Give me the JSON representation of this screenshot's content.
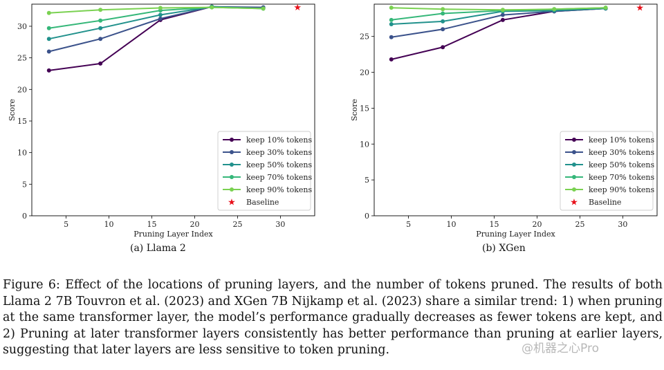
{
  "figure": {
    "caption": "Figure 6: Effect of the locations of pruning layers, and the number of tokens pruned. The results of both Llama 2 7B Touvron et al. (2023) and XGen 7B Nijkamp et al. (2023) share a similar trend: 1) when pruning at the same transformer layer, the model’s performance gradually decreases as fewer tokens are kept, and 2) Pruning at later transformer layers consistently has better performance than pruning at earlier layers, suggesting that later layers are less sensitive to token pruning.",
    "watermark": "@机器之心Pro"
  },
  "chart_data": [
    {
      "type": "line",
      "subcaption": "(a) Llama 2",
      "xlabel": "Pruning Layer Index",
      "ylabel": "Score",
      "xlim": [
        1,
        34
      ],
      "ylim": [
        0,
        33.5
      ],
      "xticks": [
        5,
        10,
        15,
        20,
        25,
        30
      ],
      "yticks": [
        0,
        5,
        10,
        15,
        20,
        25,
        30
      ],
      "legend_position": "lower right",
      "x": [
        3,
        9,
        16,
        22,
        28
      ],
      "series": [
        {
          "name": "keep 10% tokens",
          "color": "#440154",
          "values": [
            23.0,
            24.1,
            31.0,
            33.1,
            32.9
          ]
        },
        {
          "name": "keep 30% tokens",
          "color": "#3b528b",
          "values": [
            26.0,
            28.0,
            31.2,
            33.1,
            33.0
          ]
        },
        {
          "name": "keep 50% tokens",
          "color": "#21918c",
          "values": [
            28.0,
            29.7,
            31.8,
            33.1,
            32.8
          ]
        },
        {
          "name": "keep 70% tokens",
          "color": "#35b779",
          "values": [
            29.7,
            30.9,
            32.5,
            33.0,
            32.8
          ]
        },
        {
          "name": "keep 90% tokens",
          "color": "#7ad151",
          "values": [
            32.1,
            32.6,
            32.9,
            33.0,
            32.8
          ]
        }
      ],
      "baseline": {
        "name": "Baseline",
        "color": "#e8101a",
        "x": 32,
        "y": 33.0
      }
    },
    {
      "type": "line",
      "subcaption": "(b) XGen",
      "xlabel": "Pruning Layer Index",
      "ylabel": "Score",
      "xlim": [
        1,
        34
      ],
      "ylim": [
        0,
        29.5
      ],
      "xticks": [
        5,
        10,
        15,
        20,
        25,
        30
      ],
      "yticks": [
        0,
        5,
        10,
        15,
        20,
        25
      ],
      "legend_position": "lower right",
      "x": [
        3,
        9,
        16,
        22,
        28
      ],
      "series": [
        {
          "name": "keep 10% tokens",
          "color": "#440154",
          "values": [
            21.8,
            23.5,
            27.3,
            28.5,
            28.9
          ]
        },
        {
          "name": "keep 30% tokens",
          "color": "#3b528b",
          "values": [
            24.9,
            26.0,
            28.0,
            28.5,
            28.9
          ]
        },
        {
          "name": "keep 50% tokens",
          "color": "#21918c",
          "values": [
            26.7,
            27.1,
            28.5,
            28.6,
            28.9
          ]
        },
        {
          "name": "keep 70% tokens",
          "color": "#35b779",
          "values": [
            27.3,
            28.2,
            28.6,
            28.8,
            29.0
          ]
        },
        {
          "name": "keep 90% tokens",
          "color": "#7ad151",
          "values": [
            29.0,
            28.8,
            28.7,
            28.8,
            29.0
          ]
        }
      ],
      "baseline": {
        "name": "Baseline",
        "color": "#e8101a",
        "x": 32,
        "y": 29.0
      }
    }
  ]
}
